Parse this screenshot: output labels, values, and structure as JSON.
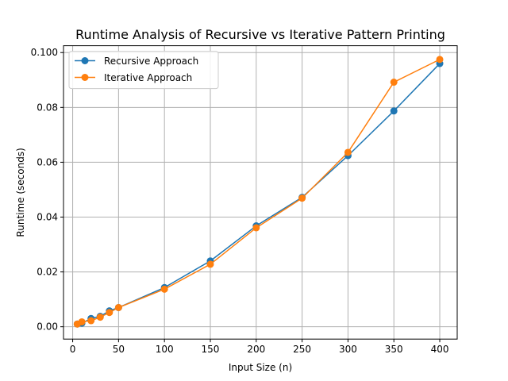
{
  "chart_data": {
    "type": "line",
    "title": "Runtime Analysis of Recursive vs Iterative Pattern Printing",
    "xlabel": "Input Size (n)",
    "ylabel": "Runtime (seconds)",
    "xlim": [
      -10,
      419
    ],
    "ylim": [
      -0.0045,
      0.1025
    ],
    "xticks": [
      0,
      50,
      100,
      150,
      200,
      250,
      300,
      350,
      400
    ],
    "xtick_labels": [
      "0",
      "50",
      "100",
      "150",
      "200",
      "250",
      "300",
      "350",
      "400"
    ],
    "yticks": [
      0.0,
      0.02,
      0.04,
      0.06,
      0.08,
      0.1
    ],
    "ytick_labels": [
      "0.00",
      "0.02",
      "0.04",
      "0.06",
      "0.08",
      "0.100"
    ],
    "grid": true,
    "legend_position": "top-left",
    "x": [
      5,
      10,
      20,
      30,
      40,
      50,
      100,
      150,
      200,
      250,
      300,
      350,
      400
    ],
    "series": [
      {
        "name": "Recursive Approach",
        "color": "#1f77b4",
        "values": [
          0.001,
          0.0013,
          0.003,
          0.0038,
          0.0058,
          0.007,
          0.0143,
          0.024,
          0.0368,
          0.0472,
          0.0624,
          0.0787,
          0.096
        ]
      },
      {
        "name": "Iterative Approach",
        "color": "#ff7f0e",
        "values": [
          0.001,
          0.0018,
          0.0022,
          0.0035,
          0.0052,
          0.007,
          0.0137,
          0.0228,
          0.0361,
          0.0469,
          0.0636,
          0.0892,
          0.0975
        ]
      }
    ]
  }
}
